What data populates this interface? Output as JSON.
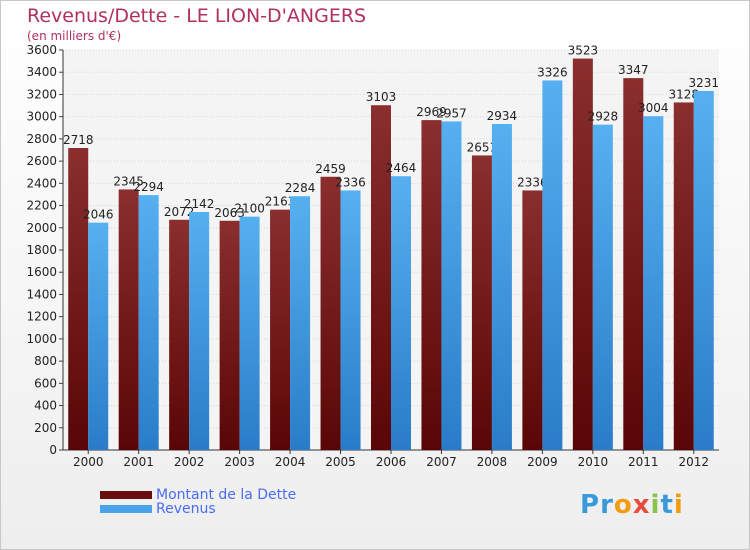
{
  "header": {
    "title": "Revenus/Dette - LE LION-D'ANGERS",
    "subtitle": "(en milliers d'€)"
  },
  "chart_data": {
    "type": "bar",
    "categories": [
      "2000",
      "2001",
      "2002",
      "2003",
      "2004",
      "2005",
      "2006",
      "2007",
      "2008",
      "2009",
      "2010",
      "2011",
      "2012"
    ],
    "series": [
      {
        "name": "Montant de la Dette",
        "color": "#7a1e1e",
        "values": [
          2718,
          2345,
          2072,
          2063,
          2163,
          2459,
          3103,
          2969,
          2651,
          2336,
          3523,
          3347,
          3128
        ],
        "labels": [
          "2718",
          "2345",
          "2072",
          "2063",
          "2163",
          "2459",
          "3103",
          "2969",
          "2651",
          "2336",
          "3523",
          "3347",
          "3128"
        ]
      },
      {
        "name": "Revenus",
        "color": "#4aa3e8",
        "values": [
          2046,
          2294,
          2142,
          2100,
          2284,
          2336,
          2464,
          2957,
          2934,
          3326,
          2928,
          3004,
          3231
        ],
        "labels": [
          "2046",
          "2294",
          "2142",
          "2100",
          "2284",
          "2336",
          "2464",
          "2957",
          "2934",
          "3326",
          "2928",
          "3004",
          "3231"
        ]
      }
    ],
    "ylim": [
      0,
      3600
    ],
    "yticks": [
      "0",
      "200",
      "400",
      "600",
      "800",
      "1000",
      "1200",
      "1400",
      "1600",
      "1800",
      "2000",
      "2200",
      "2400",
      "2600",
      "2800",
      "3000",
      "3200",
      "3400",
      "3600"
    ],
    "grid": true,
    "legend": "bottom-left"
  },
  "logo": {
    "letters": [
      {
        "ch": "P",
        "color": "#3a9ad9"
      },
      {
        "ch": "r",
        "color": "#3a9ad9"
      },
      {
        "ch": "o",
        "color": "#f39c12"
      },
      {
        "ch": "x",
        "color": "#e74c3c"
      },
      {
        "ch": "i",
        "color": "#8bc34a"
      },
      {
        "ch": "t",
        "color": "#3a9ad9"
      },
      {
        "ch": "i",
        "color": "#f39c12"
      }
    ]
  }
}
